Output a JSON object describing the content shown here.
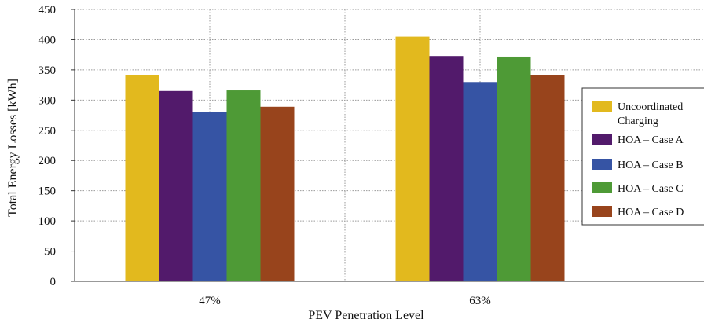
{
  "chart_data": {
    "type": "bar",
    "title": "",
    "xlabel": "PEV Penetration Level",
    "ylabel": "Total Energy Losses [kWh]",
    "ylim": [
      0,
      450
    ],
    "yticks": [
      "0",
      "50",
      "100",
      "150",
      "200",
      "250",
      "300",
      "350",
      "400",
      "450"
    ],
    "categories": [
      "47%",
      "63%"
    ],
    "grid": true,
    "legend_position": "right",
    "series": [
      {
        "name": "Uncoordinated Charging",
        "name_lines": [
          "Uncoordinated",
          "Charging"
        ],
        "color": "#e2b91e",
        "values": [
          342,
          405
        ]
      },
      {
        "name": "HOA – Case A",
        "name_lines": [
          "HOA – Case A"
        ],
        "color": "#521a6b",
        "values": [
          315,
          373
        ]
      },
      {
        "name": "HOA – Case B",
        "name_lines": [
          "HOA – Case B"
        ],
        "color": "#3654a4",
        "values": [
          280,
          330
        ]
      },
      {
        "name": "HOA – Case C",
        "name_lines": [
          "HOA – Case C"
        ],
        "color": "#4e9a36",
        "values": [
          316,
          372
        ]
      },
      {
        "name": "HOA – Case D",
        "name_lines": [
          "HOA – Case D"
        ],
        "color": "#98441c",
        "values": [
          289,
          342
        ]
      }
    ]
  }
}
